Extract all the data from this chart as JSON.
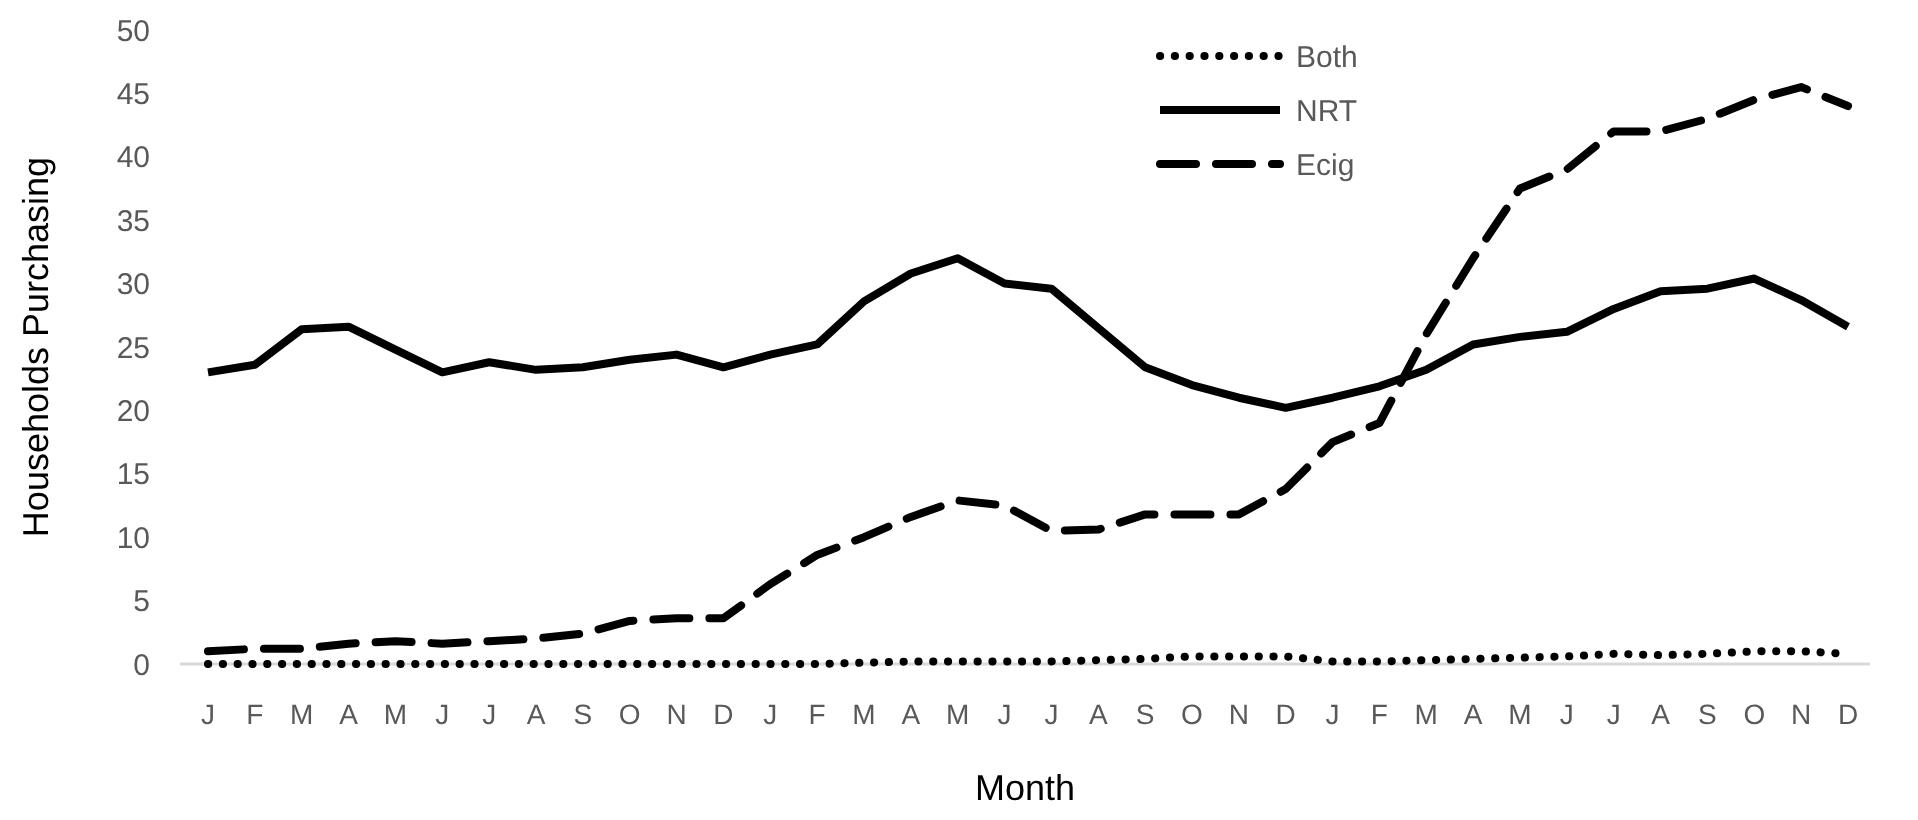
{
  "chart_data": {
    "type": "line",
    "xlabel": "Month",
    "ylabel": "Households Purchasing",
    "categories": [
      "J",
      "F",
      "M",
      "A",
      "M",
      "J",
      "J",
      "A",
      "S",
      "O",
      "N",
      "D",
      "J",
      "F",
      "M",
      "A",
      "M",
      "J",
      "J",
      "A",
      "S",
      "O",
      "N",
      "D",
      "J",
      "F",
      "M",
      "A",
      "M",
      "J",
      "J",
      "A",
      "S",
      "O",
      "N",
      "D"
    ],
    "series": [
      {
        "name": "Both",
        "color": "#000000",
        "line_style": "dotted",
        "values": [
          0,
          0,
          0,
          0,
          0,
          0,
          0,
          0,
          0,
          0,
          0,
          0,
          0,
          0,
          0.1,
          0.2,
          0.2,
          0.2,
          0.2,
          0.3,
          0.4,
          0.6,
          0.6,
          0.6,
          0.2,
          0.2,
          0.3,
          0.4,
          0.5,
          0.6,
          0.8,
          0.7,
          0.8,
          1,
          1,
          0.8
        ]
      },
      {
        "name": "NRT",
        "color": "#000000",
        "line_style": "solid",
        "values": [
          23,
          23.6,
          26.4,
          26.6,
          24.8,
          23,
          23.8,
          23.2,
          23.4,
          24,
          24.4,
          23.4,
          24.4,
          25.2,
          28.6,
          30.8,
          32,
          30,
          29.6,
          26.5,
          23.4,
          22,
          21,
          20.2,
          21,
          21.9,
          23.2,
          25.2,
          25.8,
          26.2,
          28,
          29.4,
          29.6,
          30.4,
          28.7,
          26.6
        ]
      },
      {
        "name": "Ecig",
        "color": "#000000",
        "line_style": "dashed",
        "values": [
          1,
          1.2,
          1.2,
          1.6,
          1.8,
          1.6,
          1.8,
          2,
          2.4,
          3.4,
          3.6,
          3.6,
          6.3,
          8.6,
          10,
          11.6,
          12.9,
          12.5,
          10.5,
          10.6,
          11.8,
          11.8,
          11.8,
          13.8,
          17.5,
          19,
          26,
          32,
          37.5,
          39,
          42,
          42,
          43,
          44.5,
          45.5,
          44
        ]
      }
    ],
    "ylim": [
      0,
      50
    ],
    "yticks": [
      0,
      5,
      10,
      15,
      20,
      25,
      30,
      35,
      40,
      45,
      50
    ],
    "grid": false,
    "legend": "top right"
  }
}
